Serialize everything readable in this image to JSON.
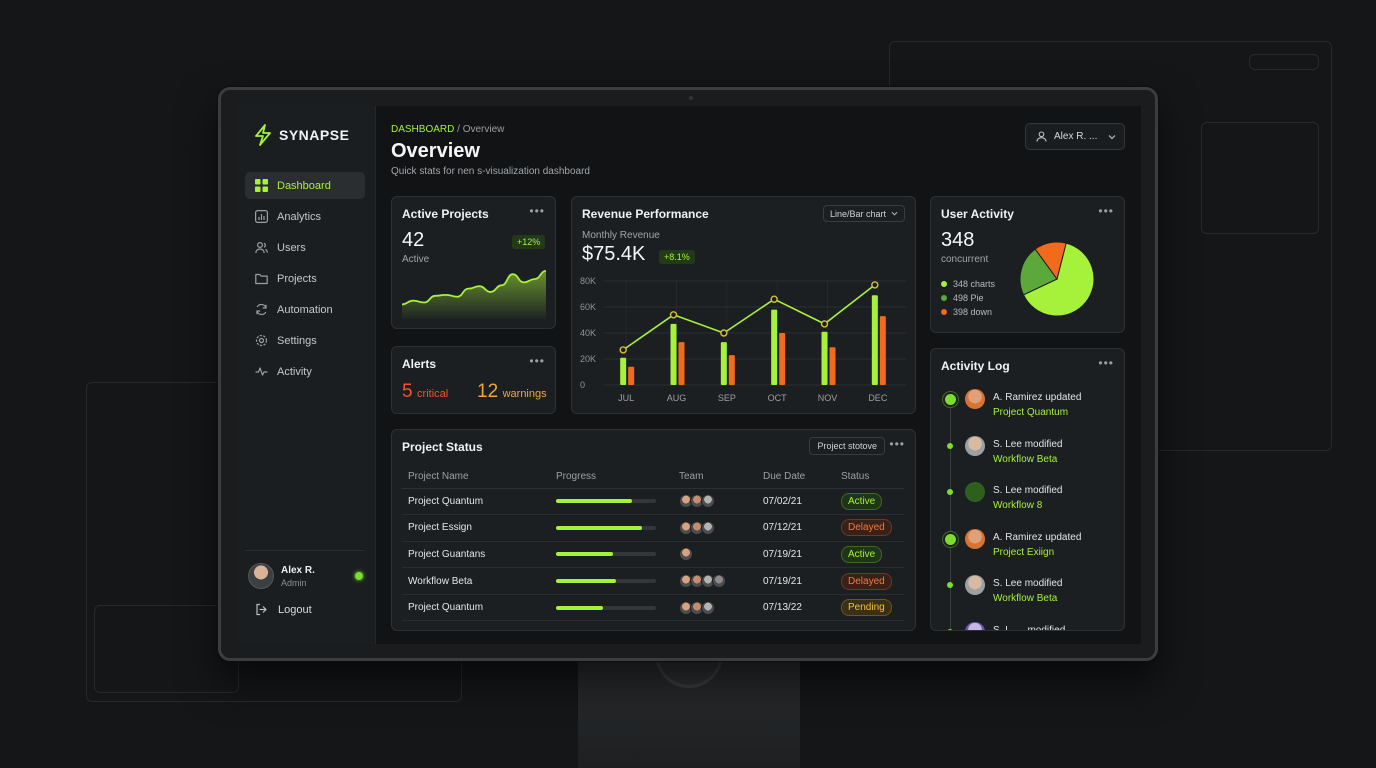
{
  "sidebar": {
    "brand": "SYNAPSE",
    "nav": [
      {
        "label": "Dashboard",
        "icon": "grid-icon",
        "active": true
      },
      {
        "label": "Analytics",
        "icon": "bar-chart-icon"
      },
      {
        "label": "Users",
        "icon": "users-icon"
      },
      {
        "label": "Projects",
        "icon": "folder-icon"
      },
      {
        "label": "Automation",
        "icon": "refresh-icon"
      },
      {
        "label": "Settings",
        "icon": "gear-icon"
      },
      {
        "label": "Activity",
        "icon": "pulse-icon"
      }
    ],
    "user": {
      "name": "Alex R.",
      "role": "Admin"
    },
    "logout": "Logout"
  },
  "header": {
    "breadcrumb_lead": "DASHBOARD",
    "breadcrumb_rest": " / Overview",
    "title": "Overview",
    "subtitle": "Quick stats for nen s-visualization dashboard",
    "user_menu": "Alex R. ..."
  },
  "active_projects": {
    "title": "Active Projects",
    "value": "42",
    "caption": "Active",
    "delta": "+12%"
  },
  "alerts": {
    "title": "Alerts",
    "critical_value": "5",
    "critical_label": "critical",
    "warning_value": "12",
    "warning_label": "warnings"
  },
  "revenue": {
    "title": "Revenue Performance",
    "dropdown": "Line/Bar chart",
    "caption": "Monthly Revenue",
    "value": "$75.4K",
    "delta": "+8.1%"
  },
  "user_activity": {
    "title": "User Activity",
    "value": "348",
    "caption": "concurrent",
    "legend": [
      {
        "label": "348 charts",
        "color": "#a6f23a"
      },
      {
        "label": "498 Pie",
        "color": "#5da83a"
      },
      {
        "label": "398 down",
        "color": "#f26a1b"
      }
    ]
  },
  "project_status": {
    "title": "Project Status",
    "filter": "Project stotove",
    "columns": [
      "Project Name",
      "Progress",
      "Team",
      "Due Date",
      "Status"
    ],
    "rows": [
      {
        "name": "Project Quantum",
        "progress": 0.76,
        "due": "07/02/21",
        "status": "Active",
        "kind": "active",
        "team": 3
      },
      {
        "name": "Project Essign",
        "progress": 0.86,
        "due": "07/12/21",
        "status": "Delayed",
        "kind": "delayed",
        "team": 3
      },
      {
        "name": "Project Guantans",
        "progress": 0.57,
        "due": "07/19/21",
        "status": "Active",
        "kind": "active",
        "team": 1
      },
      {
        "name": "Workflow Beta",
        "progress": 0.6,
        "due": "07/19/21",
        "status": "Delayed",
        "kind": "delayed",
        "team": 4
      },
      {
        "name": "Project Quantum",
        "progress": 0.47,
        "due": "07/13/22",
        "status": "Pending",
        "kind": "pending",
        "team": 3
      }
    ]
  },
  "activity_log": {
    "title": "Activity Log",
    "items": [
      {
        "actor": "A. Ramirez updated",
        "target": "Project Quantum"
      },
      {
        "actor": "S. Lee modified",
        "target": "Workflow Beta"
      },
      {
        "actor": "S. Lee modified",
        "target": "Workflow 8"
      },
      {
        "actor": "A. Ramirez updated",
        "target": "Project Exiign"
      },
      {
        "actor": "S. Lee modified",
        "target": "Workflow Beta"
      },
      {
        "actor": "S. L. ... modified",
        "target": ""
      }
    ]
  },
  "chart_data": [
    {
      "type": "line",
      "title": "",
      "values": [
        0.22,
        0.3,
        0.26,
        0.4,
        0.42,
        0.38,
        0.55,
        0.6,
        0.48,
        0.62,
        0.85,
        0.68,
        0.75,
        0.92
      ],
      "ylim": [
        0,
        1
      ]
    },
    {
      "type": "bar",
      "title": "Revenue Performance",
      "categories": [
        "JUL",
        "AUG",
        "SEP",
        "OCT",
        "NOV",
        "DEC"
      ],
      "yticks": [
        "0",
        "20K",
        "40K",
        "60K",
        "80K"
      ],
      "ylim": [
        0,
        80
      ],
      "series": [
        {
          "name": "",
          "values": [
            21,
            47,
            33,
            58,
            41,
            69
          ],
          "color": "#a6f23a"
        },
        {
          "name": "",
          "values": [
            14,
            33,
            23,
            40,
            29,
            53
          ],
          "color": "#f26a1b"
        }
      ],
      "line": [
        27,
        54,
        40,
        66,
        47,
        77
      ]
    },
    {
      "type": "pie",
      "title": "",
      "slices": [
        {
          "label": "348 charts",
          "value": 64,
          "color": "#a6f23a"
        },
        {
          "label": "498 Pie",
          "value": 22,
          "color": "#5da83a"
        },
        {
          "label": "398 down",
          "value": 14,
          "color": "#f26a1b"
        }
      ]
    }
  ]
}
